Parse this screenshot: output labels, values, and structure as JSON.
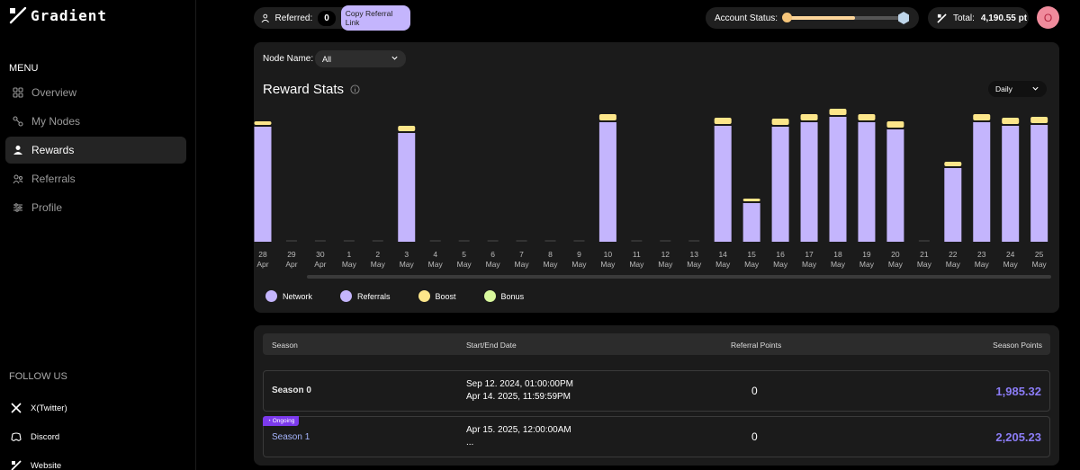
{
  "brand": {
    "name": "Gradient"
  },
  "sidebar": {
    "menu_title": "MENU",
    "items": [
      {
        "label": "Overview",
        "icon": "grid-icon",
        "active": false
      },
      {
        "label": "My Nodes",
        "icon": "nodes-icon",
        "active": false
      },
      {
        "label": "Rewards",
        "icon": "rewards-icon",
        "active": true
      },
      {
        "label": "Referrals",
        "icon": "referrals-icon",
        "active": false
      },
      {
        "label": "Profile",
        "icon": "profile-icon",
        "active": false
      }
    ],
    "follow_title": "FOLLOW US",
    "social": [
      {
        "label": "X(Twitter)",
        "icon": "x-icon"
      },
      {
        "label": "Discord",
        "icon": "discord-icon"
      },
      {
        "label": "Website",
        "icon": "gradient-icon"
      }
    ]
  },
  "topbar": {
    "referred_label": "Referred:",
    "referred_count": "0",
    "copy_link_label": "Copy Referral Link",
    "account_status_label": "Account Status:",
    "account_status_level": 0.58,
    "total_label": "Total:",
    "total_value": "4,190.55 pt",
    "avatar_letter": "O"
  },
  "rewards": {
    "node_name_label": "Node Name:",
    "node_name_value": "All",
    "title": "Reward Stats",
    "period": "Daily",
    "legend": [
      {
        "name": "Network",
        "color": "#c4b5fd"
      },
      {
        "name": "Referrals",
        "color": "#c4b5fd"
      },
      {
        "name": "Boost",
        "color": "#fde68a"
      },
      {
        "name": "Bonus",
        "color": "#d9f99d"
      }
    ]
  },
  "chart_data": {
    "type": "bar",
    "categories": [
      "28 Apr",
      "29 Apr",
      "30 Apr",
      "1 May",
      "2 May",
      "3 May",
      "4 May",
      "5 May",
      "6 May",
      "7 May",
      "8 May",
      "9 May",
      "10 May",
      "11 May",
      "12 May",
      "13 May",
      "14 May",
      "15 May",
      "16 May",
      "17 May",
      "18 May",
      "19 May",
      "20 May",
      "21 May",
      "22 May",
      "23 May",
      "24 May",
      "25 May"
    ],
    "x_top": [
      "28",
      "29",
      "30",
      "1",
      "2",
      "3",
      "4",
      "5",
      "6",
      "7",
      "8",
      "9",
      "10",
      "11",
      "12",
      "13",
      "14",
      "15",
      "16",
      "17",
      "18",
      "19",
      "20",
      "21",
      "22",
      "23",
      "24",
      "25"
    ],
    "x_bottom": [
      "Apr",
      "Apr",
      "Apr",
      "May",
      "May",
      "May",
      "May",
      "May",
      "May",
      "May",
      "May",
      "May",
      "May",
      "May",
      "May",
      "May",
      "May",
      "May",
      "May",
      "May",
      "May",
      "May",
      "May",
      "May",
      "May",
      "May",
      "May",
      "May"
    ],
    "series": [
      {
        "name": "Network",
        "color": "#c4b5fd",
        "values": [
          128,
          0,
          0,
          0,
          0,
          121,
          0,
          0,
          0,
          0,
          0,
          0,
          133,
          0,
          0,
          0,
          129,
          43,
          128,
          133,
          139,
          133,
          125,
          0,
          82,
          133,
          129,
          130
        ]
      },
      {
        "name": "Boost",
        "color": "#fde68a",
        "values": [
          4,
          0,
          0,
          0,
          0,
          6,
          0,
          0,
          0,
          0,
          0,
          0,
          7,
          0,
          0,
          0,
          7,
          3,
          7,
          7,
          7,
          7,
          7,
          0,
          5,
          7,
          7,
          7
        ]
      }
    ],
    "ylim": [
      0,
      150
    ],
    "grid": false
  },
  "seasons": {
    "headers": {
      "season": "Season",
      "dates": "Start/End Date",
      "referral_points": "Referral Points",
      "season_points": "Season Points"
    },
    "rows": [
      {
        "name": "Season 0",
        "start": "Sep 12. 2024, 01:00:00PM",
        "end": "Apr 14. 2025, 11:59:59PM",
        "referral_points": "0",
        "season_points": "1,985.32",
        "badge": ""
      },
      {
        "name": "Season 1",
        "start": "Apr 15. 2025, 12:00:00AM",
        "end": "...",
        "referral_points": "0",
        "season_points": "2,205.23",
        "badge": "Ongoing"
      }
    ]
  }
}
